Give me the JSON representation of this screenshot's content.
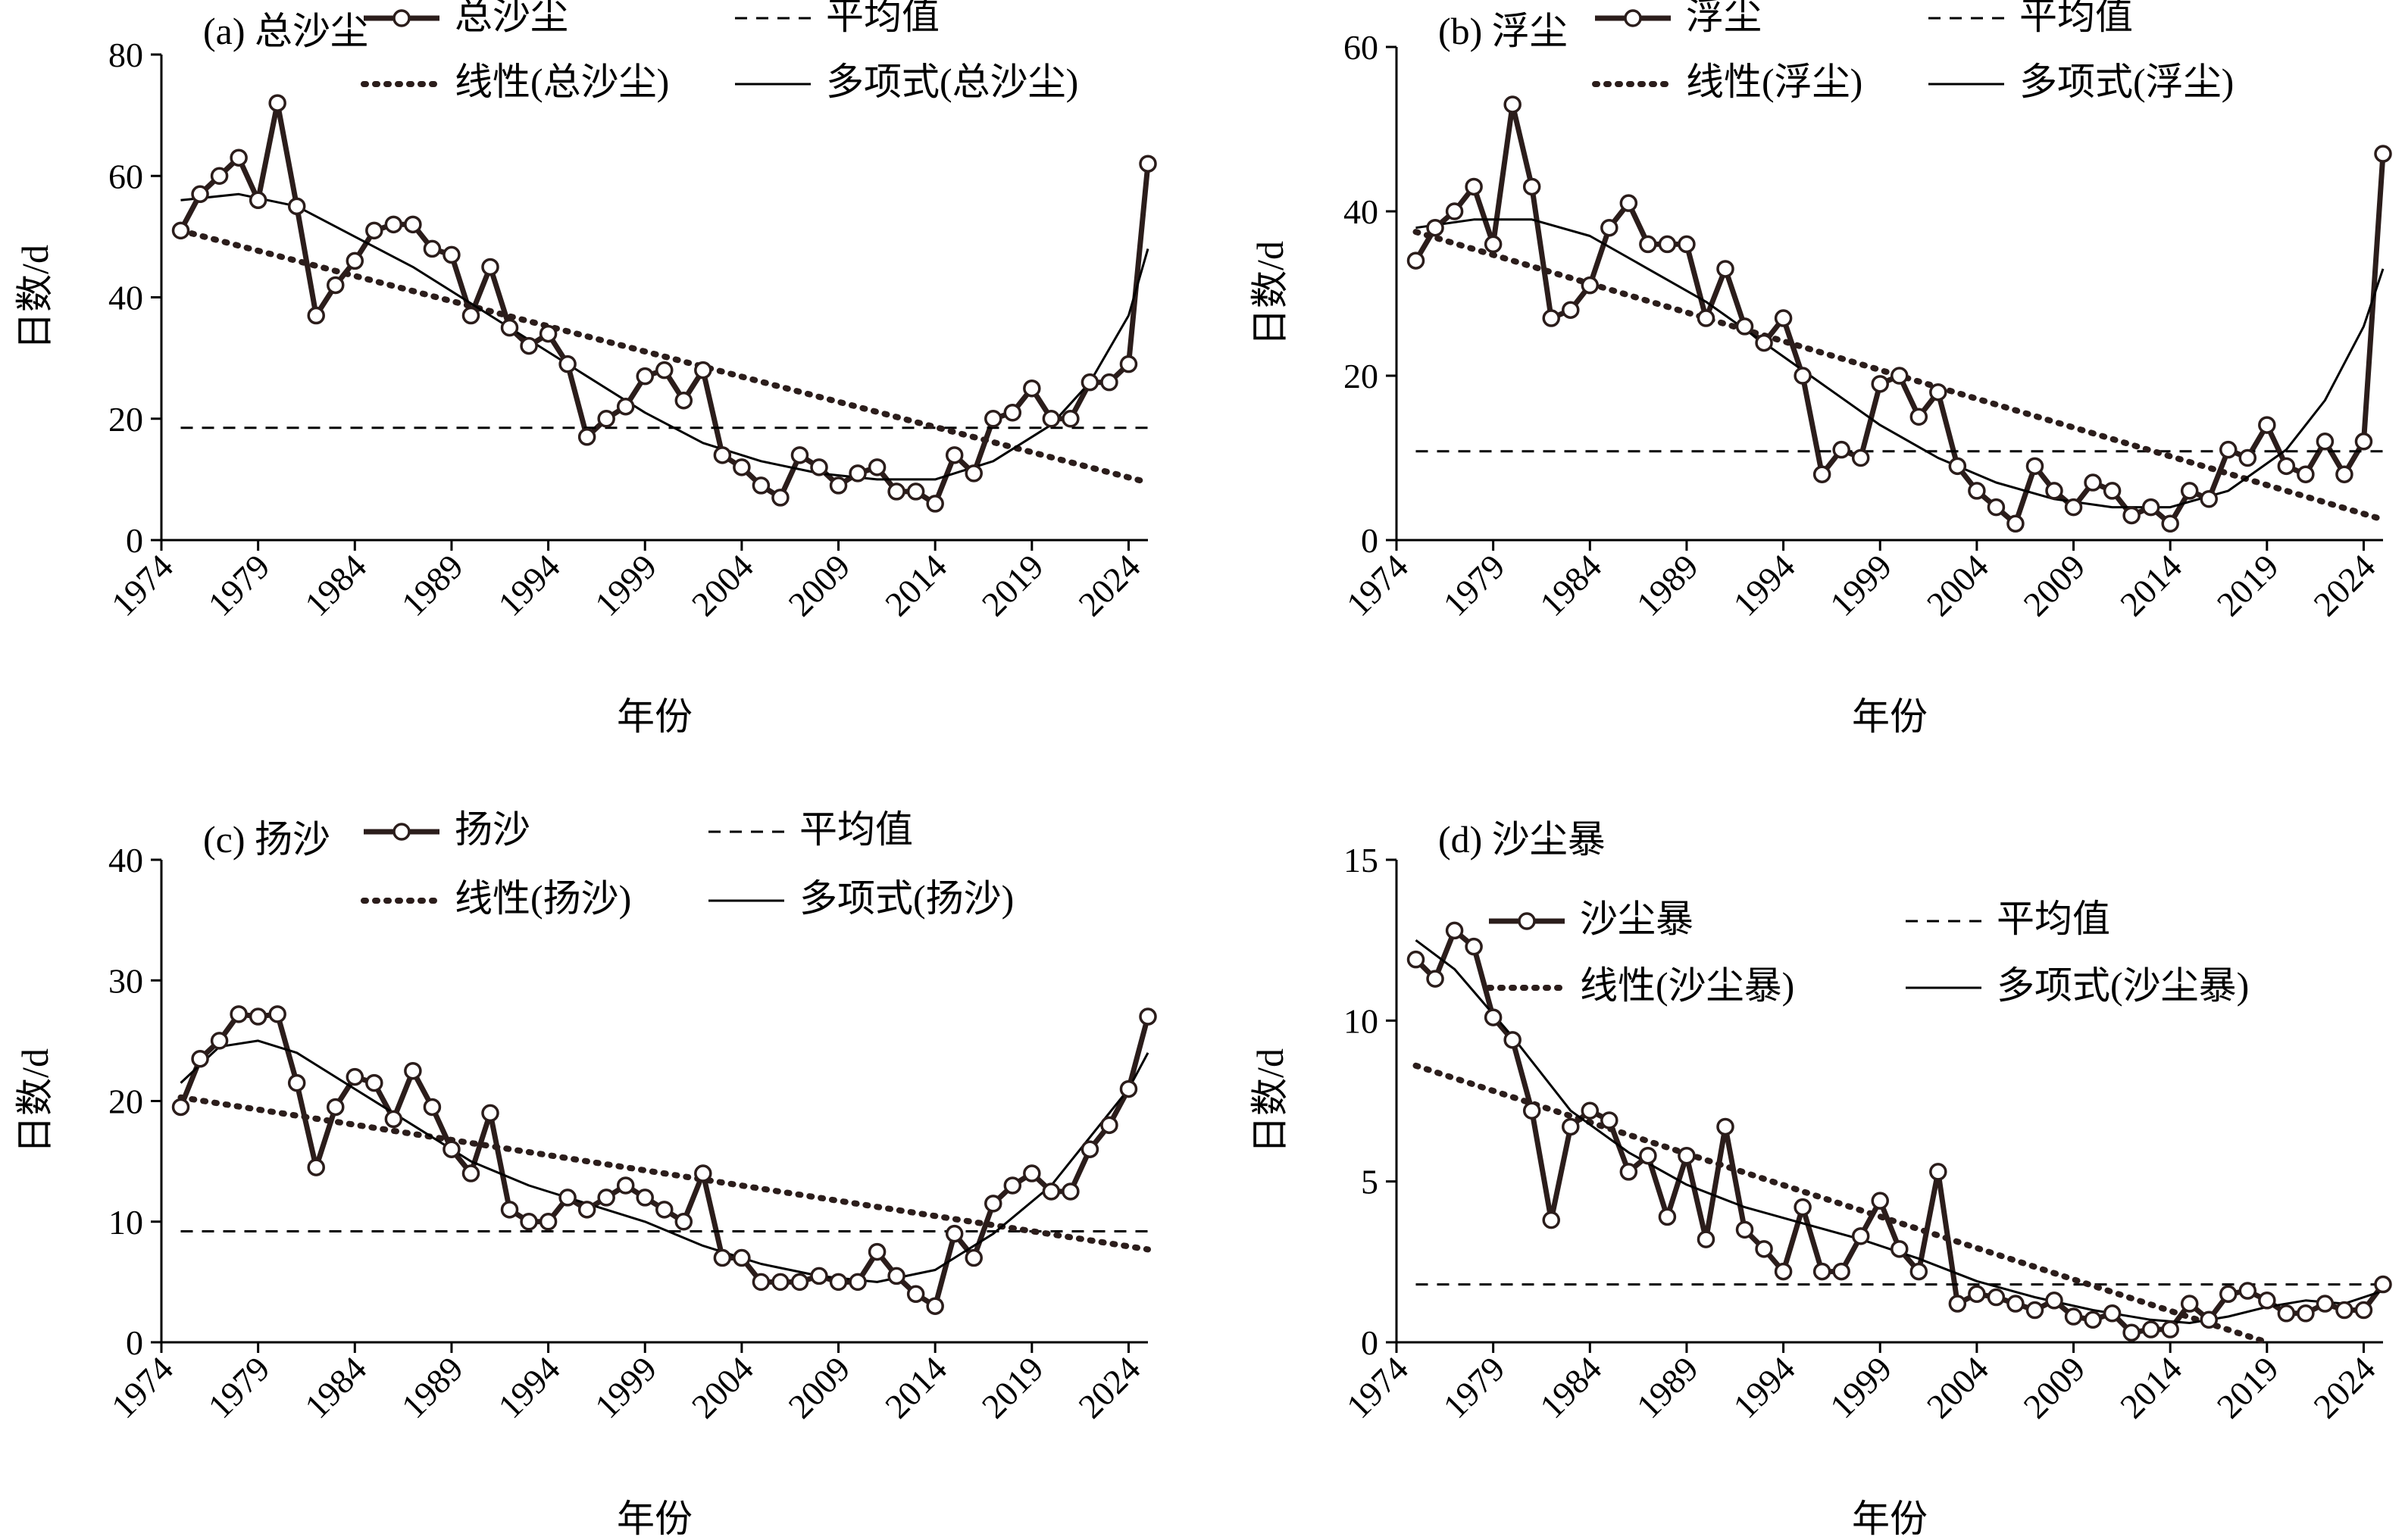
{
  "figure": {
    "y_axis_label": "日数/d",
    "x_axis_label": "年份"
  },
  "chart_data": [
    {
      "type": "line",
      "panel_label": "(a) 总沙尘",
      "xlabel": "年份",
      "ylabel": "日数/d",
      "xlim": [
        1974,
        2025
      ],
      "ylim": [
        0,
        80
      ],
      "xticks": [
        "1974",
        "1979",
        "1984",
        "1989",
        "1994",
        "1999",
        "2004",
        "2009",
        "2014",
        "2019",
        "2024"
      ],
      "yticks": [
        "0",
        "20",
        "40",
        "60",
        "80"
      ],
      "legend": [
        "总沙尘",
        "平均值",
        "线性(总沙尘)",
        "多项式(总沙尘)"
      ],
      "legend_layout": "top-center, two rows",
      "grid": false,
      "series": [
        {
          "name": "总沙尘",
          "style": "thick line with circle markers",
          "x": [
            1975,
            1976,
            1977,
            1978,
            1979,
            1980,
            1981,
            1982,
            1983,
            1984,
            1985,
            1986,
            1987,
            1988,
            1989,
            1990,
            1991,
            1992,
            1993,
            1994,
            1995,
            1996,
            1997,
            1998,
            1999,
            2000,
            2001,
            2002,
            2003,
            2004,
            2005,
            2006,
            2007,
            2008,
            2009,
            2010,
            2011,
            2012,
            2013,
            2014,
            2015,
            2016,
            2017,
            2018,
            2019,
            2020,
            2021,
            2022,
            2023,
            2024,
            2025
          ],
          "y": [
            51,
            57,
            60,
            63,
            56,
            72,
            55,
            37,
            42,
            46,
            51,
            52,
            52,
            48,
            47,
            37,
            45,
            35,
            32,
            34,
            29,
            17,
            20,
            22,
            27,
            28,
            23,
            28,
            14,
            12,
            9,
            7,
            14,
            12,
            9,
            11,
            12,
            8,
            8,
            6,
            14,
            11,
            20,
            21,
            25,
            20,
            20,
            26,
            26,
            29,
            62
          ]
        },
        {
          "name": "平均值",
          "style": "dashed",
          "x": [
            1975,
            2025
          ],
          "y": [
            18.5,
            18.5
          ]
        },
        {
          "name": "线性(总沙尘)",
          "style": "dotted",
          "x": [
            1975,
            2025
          ],
          "y": [
            51,
            9.5
          ]
        },
        {
          "name": "多项式(总沙尘)",
          "style": "thin solid",
          "x": [
            1975,
            1978,
            1981,
            1984,
            1987,
            1990,
            1993,
            1996,
            1999,
            2002,
            2005,
            2008,
            2011,
            2014,
            2017,
            2020,
            2022,
            2024,
            2025
          ],
          "y": [
            56,
            57,
            55,
            50,
            45,
            39,
            33,
            27,
            21,
            16,
            13,
            11,
            10,
            10,
            13,
            19,
            26,
            37,
            48
          ]
        }
      ]
    },
    {
      "type": "line",
      "panel_label": "(b) 浮尘",
      "xlabel": "年份",
      "ylabel": "日数/d",
      "xlim": [
        1974,
        2025
      ],
      "ylim": [
        0,
        60
      ],
      "xticks": [
        "1974",
        "1979",
        "1984",
        "1989",
        "1994",
        "1999",
        "2004",
        "2009",
        "2014",
        "2019",
        "2024"
      ],
      "yticks": [
        "0",
        "20",
        "40",
        "60"
      ],
      "legend": [
        "浮尘",
        "平均值",
        "线性(浮尘)",
        "多项式(浮尘)"
      ],
      "legend_layout": "top-center, two rows",
      "grid": false,
      "series": [
        {
          "name": "浮尘",
          "style": "thick line with circle markers",
          "x": [
            1975,
            1976,
            1977,
            1978,
            1979,
            1980,
            1981,
            1982,
            1983,
            1984,
            1985,
            1986,
            1987,
            1988,
            1989,
            1990,
            1991,
            1992,
            1993,
            1994,
            1995,
            1996,
            1997,
            1998,
            1999,
            2000,
            2001,
            2002,
            2003,
            2004,
            2005,
            2006,
            2007,
            2008,
            2009,
            2010,
            2011,
            2012,
            2013,
            2014,
            2015,
            2016,
            2017,
            2018,
            2019,
            2020,
            2021,
            2022,
            2023,
            2024,
            2025
          ],
          "y": [
            34,
            38,
            40,
            43,
            36,
            53,
            43,
            27,
            28,
            31,
            38,
            41,
            36,
            36,
            36,
            27,
            33,
            26,
            24,
            27,
            20,
            8,
            11,
            10,
            19,
            20,
            15,
            18,
            9,
            6,
            4,
            2,
            9,
            6,
            4,
            7,
            6,
            3,
            4,
            2,
            6,
            5,
            11,
            10,
            14,
            9,
            8,
            12,
            8,
            12,
            47
          ]
        },
        {
          "name": "平均值",
          "style": "dashed",
          "x": [
            1975,
            2025
          ],
          "y": [
            10.8,
            10.8
          ]
        },
        {
          "name": "线性(浮尘)",
          "style": "dotted",
          "x": [
            1975,
            2025
          ],
          "y": [
            37.5,
            2.5
          ]
        },
        {
          "name": "多项式(浮尘)",
          "style": "thin solid",
          "x": [
            1975,
            1978,
            1981,
            1984,
            1987,
            1990,
            1993,
            1996,
            1999,
            2002,
            2005,
            2008,
            2011,
            2014,
            2017,
            2020,
            2022,
            2024,
            2025
          ],
          "y": [
            38,
            39,
            39,
            37,
            33,
            29,
            24,
            19,
            14,
            10,
            7,
            5,
            4,
            4,
            6,
            11,
            17,
            26,
            33
          ]
        }
      ]
    },
    {
      "type": "line",
      "panel_label": "(c) 扬沙",
      "xlabel": "年份",
      "ylabel": "日数/d",
      "xlim": [
        1974,
        2025
      ],
      "ylim": [
        0,
        40
      ],
      "xticks": [
        "1974",
        "1979",
        "1984",
        "1989",
        "1994",
        "1999",
        "2004",
        "2009",
        "2014",
        "2019",
        "2024"
      ],
      "yticks": [
        "0",
        "10",
        "20",
        "30",
        "40"
      ],
      "legend": [
        "扬沙",
        "平均值",
        "线性(扬沙)",
        "多项式(扬沙)"
      ],
      "legend_layout": "top-center, two rows",
      "grid": false,
      "series": [
        {
          "name": "扬沙",
          "style": "thick line with circle markers",
          "x": [
            1975,
            1976,
            1977,
            1978,
            1979,
            1980,
            1981,
            1982,
            1983,
            1984,
            1985,
            1986,
            1987,
            1988,
            1989,
            1990,
            1991,
            1992,
            1993,
            1994,
            1995,
            1996,
            1997,
            1998,
            1999,
            2000,
            2001,
            2002,
            2003,
            2004,
            2005,
            2006,
            2007,
            2008,
            2009,
            2010,
            2011,
            2012,
            2013,
            2014,
            2015,
            2016,
            2017,
            2018,
            2019,
            2020,
            2021,
            2022,
            2023,
            2024,
            2025
          ],
          "y": [
            19.5,
            23.5,
            25,
            27.2,
            27,
            27.2,
            21.5,
            14.5,
            19.5,
            22,
            21.5,
            18.5,
            22.5,
            19.5,
            16,
            14,
            19,
            11,
            10,
            10,
            12,
            11,
            12,
            13,
            12,
            11,
            10,
            14,
            7,
            7,
            5,
            5,
            5,
            5.5,
            5,
            5,
            7.5,
            5.5,
            4,
            3,
            9,
            7,
            11.5,
            13,
            14,
            12.5,
            12.5,
            16,
            18,
            21,
            27
          ]
        },
        {
          "name": "平均值",
          "style": "dashed",
          "x": [
            1975,
            2025
          ],
          "y": [
            9.2,
            9.2
          ]
        },
        {
          "name": "线性(扬沙)",
          "style": "dotted",
          "x": [
            1975,
            2025
          ],
          "y": [
            20.3,
            7.7
          ]
        },
        {
          "name": "多项式(扬沙)",
          "style": "thin solid",
          "x": [
            1975,
            1977,
            1979,
            1981,
            1984,
            1987,
            1990,
            1993,
            1996,
            1999,
            2002,
            2005,
            2008,
            2011,
            2014,
            2017,
            2020,
            2022,
            2024,
            2025
          ],
          "y": [
            21.5,
            24.5,
            25,
            24,
            21,
            18,
            15,
            13,
            11.5,
            10,
            8,
            6.5,
            5.5,
            5,
            6,
            9,
            13,
            17,
            21,
            24
          ]
        }
      ]
    },
    {
      "type": "line",
      "panel_label": "(d) 沙尘暴",
      "xlabel": "年份",
      "ylabel": "日数/d",
      "xlim": [
        1974,
        2025
      ],
      "ylim": [
        0,
        15
      ],
      "xticks": [
        "1974",
        "1979",
        "1984",
        "1989",
        "1994",
        "1999",
        "2004",
        "2009",
        "2014",
        "2019",
        "2024"
      ],
      "yticks": [
        "0",
        "5",
        "10",
        "15"
      ],
      "legend": [
        "沙尘暴",
        "平均值",
        "线性(沙尘暴)",
        "多项式(沙尘暴)"
      ],
      "legend_layout": "upper-right, two rows",
      "grid": false,
      "series": [
        {
          "name": "沙尘暴",
          "style": "thick line with circle markers",
          "x": [
            1975,
            1976,
            1977,
            1978,
            1979,
            1980,
            1981,
            1982,
            1983,
            1984,
            1985,
            1986,
            1987,
            1988,
            1989,
            1990,
            1991,
            1992,
            1993,
            1994,
            1995,
            1996,
            1997,
            1998,
            1999,
            2000,
            2001,
            2002,
            2003,
            2004,
            2005,
            2006,
            2007,
            2008,
            2009,
            2010,
            2011,
            2012,
            2013,
            2014,
            2015,
            2016,
            2017,
            2018,
            2019,
            2020,
            2021,
            2022,
            2023,
            2024,
            2025
          ],
          "y": [
            11.9,
            11.3,
            12.8,
            12.3,
            10.1,
            9.4,
            7.2,
            3.8,
            6.7,
            7.2,
            6.9,
            5.3,
            5.8,
            3.9,
            5.8,
            3.2,
            6.7,
            3.5,
            2.9,
            2.2,
            4.2,
            2.2,
            2.2,
            3.3,
            4.4,
            2.9,
            2.2,
            5.3,
            1.2,
            1.5,
            1.4,
            1.2,
            1.0,
            1.3,
            0.8,
            0.7,
            0.9,
            0.3,
            0.4,
            0.4,
            1.2,
            0.7,
            1.5,
            1.6,
            1.3,
            0.9,
            0.9,
            1.2,
            1.0,
            1.0,
            1.8
          ]
        },
        {
          "name": "平均值",
          "style": "dashed",
          "x": [
            1975,
            2025
          ],
          "y": [
            1.8,
            1.8
          ]
        },
        {
          "name": "线性(沙尘暴)",
          "style": "dotted",
          "x": [
            1975,
            2019
          ],
          "y": [
            8.6,
            0
          ]
        },
        {
          "name": "多项式(沙尘暴)",
          "style": "thin solid",
          "x": [
            1975,
            1977,
            1980,
            1983,
            1986,
            1989,
            1992,
            1995,
            1998,
            2001,
            2004,
            2007,
            2010,
            2013,
            2015,
            2017,
            2019,
            2021,
            2023,
            2025
          ],
          "y": [
            12.5,
            11.6,
            9.5,
            7.2,
            5.9,
            4.9,
            4.2,
            3.7,
            3.2,
            2.6,
            1.9,
            1.4,
            1.0,
            0.7,
            0.6,
            0.8,
            1.1,
            1.3,
            1.2,
            1.6
          ]
        }
      ]
    }
  ]
}
